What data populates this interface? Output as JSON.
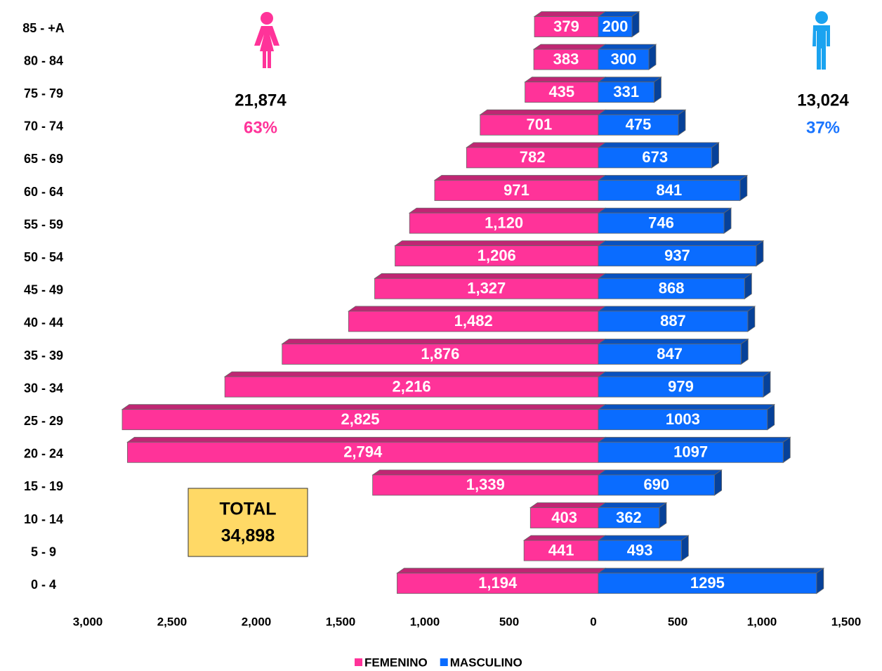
{
  "chart_data": {
    "type": "pyramid",
    "categories": [
      "85 - +A",
      "80 - 84",
      "75 - 79",
      "70 - 74",
      "65 - 69",
      "60 - 64",
      "55 - 59",
      "50 - 54",
      "45 - 49",
      "40 - 44",
      "35 - 39",
      "30 - 34",
      "25 - 29",
      "20 - 24",
      "15 - 19",
      "10 - 14",
      "5 - 9",
      "0 - 4"
    ],
    "series": [
      {
        "name": "FEMENINO",
        "color": "#ff3399",
        "side": "left",
        "values": [
          379,
          383,
          435,
          701,
          782,
          971,
          1120,
          1206,
          1327,
          1482,
          1876,
          2216,
          2825,
          2794,
          1339,
          403,
          441,
          1194
        ],
        "value_labels": [
          "379",
          "383",
          "435",
          "701",
          "782",
          "971",
          "1,120",
          "1,206",
          "1,327",
          "1,482",
          "1,876",
          "2,216",
          "2,825",
          "2,794",
          "1,339",
          "403",
          "441",
          "1,194"
        ]
      },
      {
        "name": "MASCULINO",
        "color": "#0a6cff",
        "side": "right",
        "values": [
          200,
          300,
          331,
          475,
          673,
          841,
          746,
          937,
          868,
          887,
          847,
          979,
          1003,
          1097,
          690,
          362,
          493,
          1295
        ]
      }
    ],
    "xlim": [
      -3000,
      1500
    ],
    "xticks": [
      {
        "value": -3000,
        "label": "3,000"
      },
      {
        "value": -2500,
        "label": "2,500"
      },
      {
        "value": -2000,
        "label": "2,000"
      },
      {
        "value": -1500,
        "label": "1,500"
      },
      {
        "value": -1000,
        "label": "1,000"
      },
      {
        "value": -500,
        "label": "500"
      },
      0,
      500,
      {
        "value": 1000,
        "label": "1,000"
      },
      {
        "value": 1500,
        "label": "1,500"
      }
    ],
    "annotations": {
      "female_total": "21,874",
      "female_percent": "63%",
      "male_total": "13,024",
      "male_percent": "37%",
      "total_label": "TOTAL",
      "total_value": "34,898"
    },
    "legend": "bottom"
  }
}
